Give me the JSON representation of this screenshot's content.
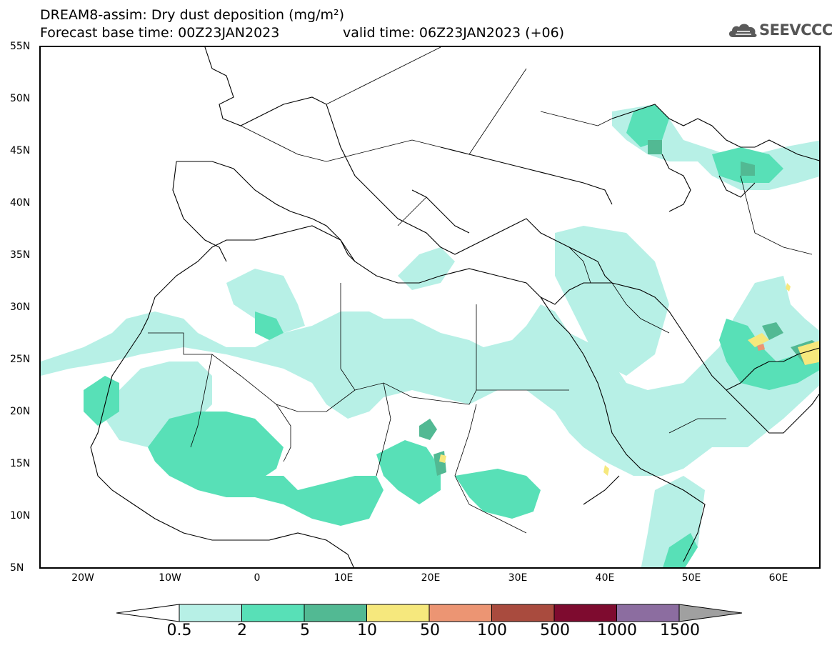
{
  "title": {
    "line1": "DREAM8-assim: Dry dust deposition (mg/m²)",
    "base_time": "Forecast base time: 00Z23JAN2023",
    "valid_time": "valid time: 06Z23JAN2023 (+06)"
  },
  "logo": {
    "text": "SEEVCCC",
    "icon": "cloud-logo-icon"
  },
  "axes": {
    "lat_labels": [
      "55N",
      "50N",
      "45N",
      "40N",
      "35N",
      "30N",
      "25N",
      "20N",
      "15N",
      "10N",
      "5N"
    ],
    "lon_labels": [
      "20W",
      "10W",
      "0",
      "10E",
      "20E",
      "30E",
      "40E",
      "50E",
      "60E"
    ],
    "lon_range": [
      -25,
      65
    ],
    "lat_range": [
      5,
      55
    ]
  },
  "colorbar": {
    "labels": [
      "0.5",
      "2",
      "5",
      "10",
      "50",
      "100",
      "500",
      "1000",
      "1500"
    ],
    "colors": [
      "#b7f0e6",
      "#58e0b7",
      "#52b993",
      "#f6e87d",
      "#ec9573",
      "#a94b3e",
      "#7e0b2f",
      "#8c6da0",
      "#a0a0a0"
    ],
    "under_color": "#ffffff"
  }
}
